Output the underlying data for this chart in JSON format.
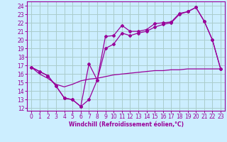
{
  "xlabel": "Windchill (Refroidissement éolien,°C)",
  "bg_color": "#cceeff",
  "grid_color": "#aacccc",
  "line_color": "#990099",
  "xlim": [
    -0.5,
    23.5
  ],
  "ylim": [
    11.7,
    24.5
  ],
  "yticks": [
    12,
    13,
    14,
    15,
    16,
    17,
    18,
    19,
    20,
    21,
    22,
    23,
    24
  ],
  "xticks": [
    0,
    1,
    2,
    3,
    4,
    5,
    6,
    7,
    8,
    9,
    10,
    11,
    12,
    13,
    14,
    15,
    16,
    17,
    18,
    19,
    20,
    21,
    22,
    23
  ],
  "series1_x": [
    0,
    1,
    2,
    3,
    4,
    5,
    6,
    7,
    8,
    9,
    10,
    11,
    12,
    13,
    14,
    15,
    16,
    17,
    18,
    19,
    20,
    21,
    22,
    23
  ],
  "series1_y": [
    16.8,
    16.3,
    15.8,
    14.6,
    13.2,
    13.0,
    12.2,
    17.2,
    15.3,
    20.4,
    20.5,
    21.7,
    21.0,
    21.0,
    21.2,
    21.9,
    22.0,
    22.1,
    23.1,
    23.3,
    23.8,
    22.2,
    20.0,
    16.6
  ],
  "series2_x": [
    0,
    1,
    2,
    3,
    4,
    5,
    6,
    7,
    8,
    9,
    10,
    11,
    12,
    13,
    14,
    15,
    16,
    17,
    18,
    19,
    20,
    21,
    22,
    23
  ],
  "series2_y": [
    16.8,
    16.3,
    15.8,
    14.6,
    13.2,
    13.0,
    12.2,
    13.0,
    15.3,
    19.0,
    19.5,
    20.8,
    20.5,
    20.8,
    21.0,
    21.5,
    21.8,
    22.0,
    23.0,
    23.3,
    23.8,
    22.2,
    20.0,
    16.6
  ],
  "series3_x": [
    0,
    1,
    2,
    3,
    4,
    5,
    6,
    7,
    8,
    9,
    10,
    11,
    12,
    13,
    14,
    15,
    16,
    17,
    18,
    19,
    20,
    21,
    22,
    23
  ],
  "series3_y": [
    16.8,
    16.0,
    15.5,
    14.8,
    14.5,
    14.8,
    15.2,
    15.4,
    15.5,
    15.7,
    15.9,
    16.0,
    16.1,
    16.2,
    16.3,
    16.4,
    16.4,
    16.5,
    16.5,
    16.6,
    16.6,
    16.6,
    16.6,
    16.6
  ],
  "tick_fontsize": 5.5,
  "xlabel_fontsize": 5.5
}
